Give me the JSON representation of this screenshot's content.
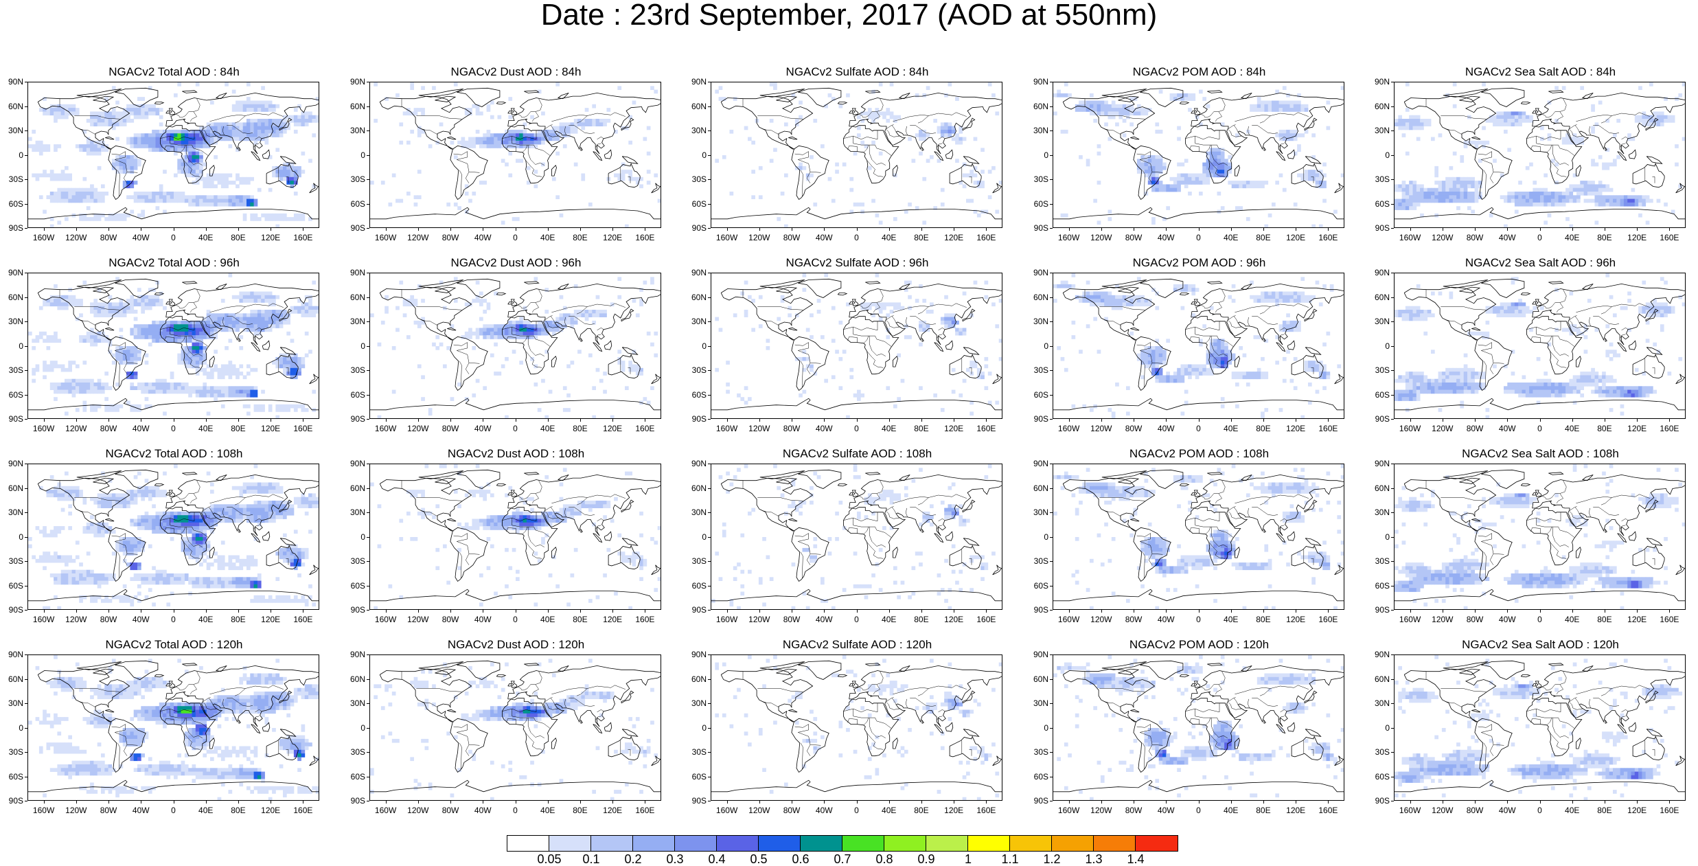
{
  "title": "Date : 23rd September, 2017 (AOD at 550nm)",
  "map": {
    "lat_labels": [
      "90N",
      "60N",
      "30N",
      "0",
      "30S",
      "60S",
      "90S"
    ],
    "lon_labels": [
      "160W",
      "120W",
      "80W",
      "40W",
      "0",
      "40E",
      "80E",
      "120E",
      "160E"
    ],
    "lon_values": [
      -160,
      -120,
      -80,
      -40,
      0,
      40,
      80,
      120,
      160
    ],
    "lat_values": [
      90,
      60,
      30,
      0,
      -30,
      -60,
      -90
    ],
    "lon_range": [
      -180,
      180
    ],
    "lat_range": [
      -90,
      90
    ],
    "coastline_color": "#000000"
  },
  "panels": [
    {
      "title": "NGACv2 Total AOD : 84h",
      "species": "total",
      "hour": 84
    },
    {
      "title": "NGACv2 Dust AOD : 84h",
      "species": "dust",
      "hour": 84
    },
    {
      "title": "NGACv2 Sulfate AOD : 84h",
      "species": "sulfate",
      "hour": 84
    },
    {
      "title": "NGACv2 POM AOD : 84h",
      "species": "pom",
      "hour": 84
    },
    {
      "title": "NGACv2 Sea Salt AOD : 84h",
      "species": "seasalt",
      "hour": 84
    },
    {
      "title": "NGACv2 Total AOD : 96h",
      "species": "total",
      "hour": 96
    },
    {
      "title": "NGACv2 Dust AOD : 96h",
      "species": "dust",
      "hour": 96
    },
    {
      "title": "NGACv2 Sulfate AOD : 96h",
      "species": "sulfate",
      "hour": 96
    },
    {
      "title": "NGACv2 POM AOD : 96h",
      "species": "pom",
      "hour": 96
    },
    {
      "title": "NGACv2 Sea Salt AOD : 96h",
      "species": "seasalt",
      "hour": 96
    },
    {
      "title": "NGACv2 Total AOD : 108h",
      "species": "total",
      "hour": 108
    },
    {
      "title": "NGACv2 Dust AOD : 108h",
      "species": "dust",
      "hour": 108
    },
    {
      "title": "NGACv2 Sulfate AOD : 108h",
      "species": "sulfate",
      "hour": 108
    },
    {
      "title": "NGACv2 POM AOD : 108h",
      "species": "pom",
      "hour": 108
    },
    {
      "title": "NGACv2 Sea Salt AOD : 108h",
      "species": "seasalt",
      "hour": 108
    },
    {
      "title": "NGACv2 Total AOD : 120h",
      "species": "total",
      "hour": 120
    },
    {
      "title": "NGACv2 Dust AOD : 120h",
      "species": "dust",
      "hour": 120
    },
    {
      "title": "NGACv2 Sulfate AOD : 120h",
      "species": "sulfate",
      "hour": 120
    },
    {
      "title": "NGACv2 POM AOD : 120h",
      "species": "pom",
      "hour": 120
    },
    {
      "title": "NGACv2 Sea Salt  AOD : 120h",
      "species": "seasalt",
      "hour": 120
    }
  ],
  "colorbar": {
    "labels": [
      "0.05",
      "0.1",
      "0.2",
      "0.3",
      "0.4",
      "0.5",
      "0.6",
      "0.7",
      "0.8",
      "0.9",
      "1",
      "1.1",
      "1.2",
      "1.3",
      "1.4"
    ],
    "colors": [
      "#ffffff",
      "#d6e0fa",
      "#b4c6f6",
      "#95aef3",
      "#7d93ee",
      "#5a63e6",
      "#1f5ee8",
      "#00928f",
      "#48e224",
      "#8ff021",
      "#bbf04a",
      "#ffff00",
      "#f7c407",
      "#f5a102",
      "#f67d07",
      "#f52b11"
    ]
  }
}
